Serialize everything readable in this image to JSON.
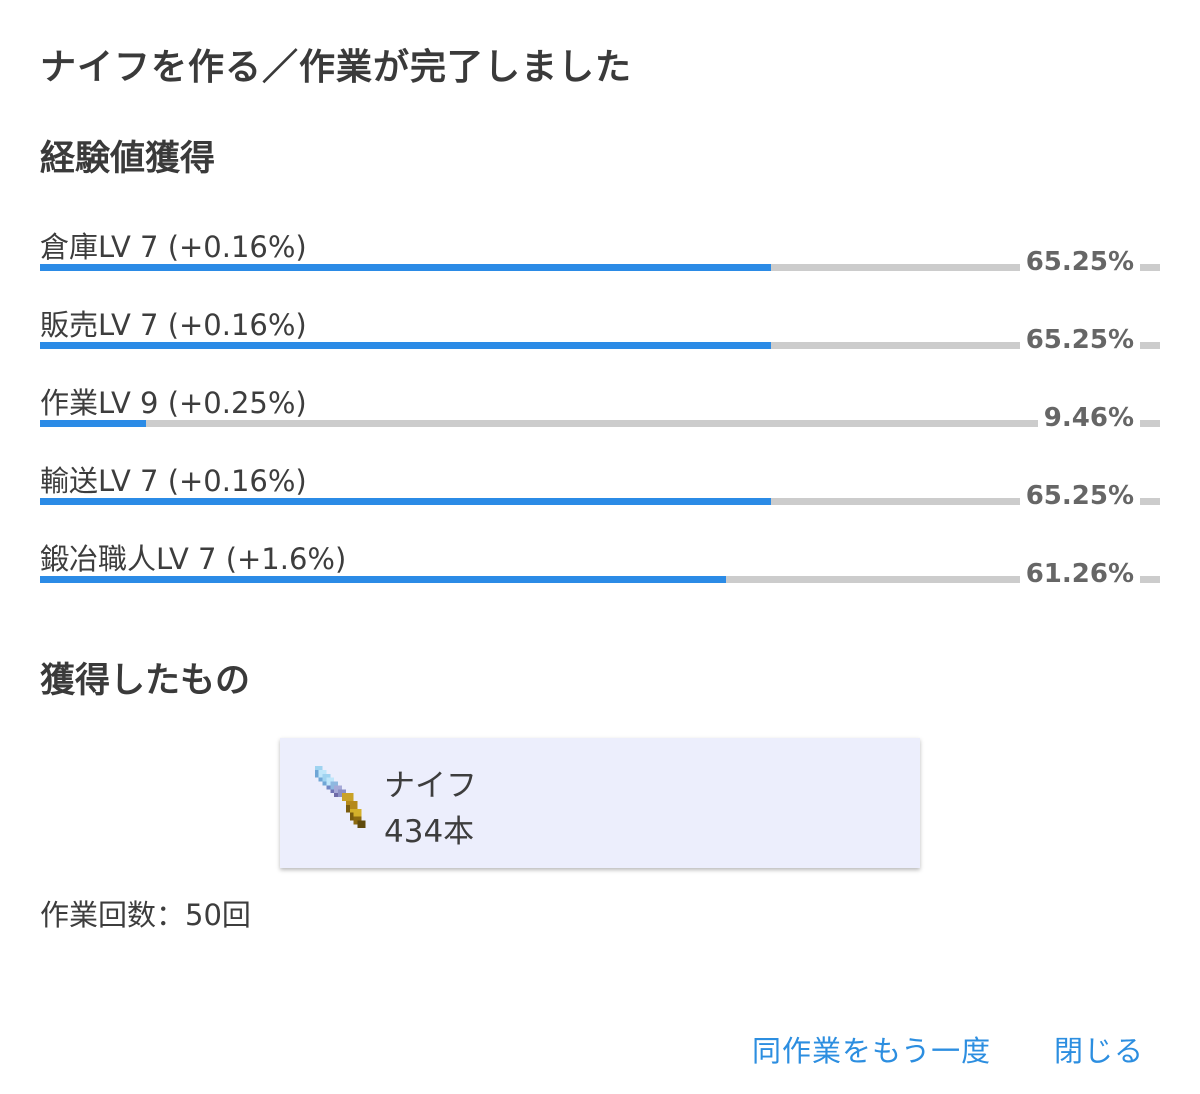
{
  "dialog": {
    "title": "ナイフを作る／作業が完了しました"
  },
  "experience": {
    "heading": "経験値獲得",
    "skills": [
      {
        "label": "倉庫LV 7 (+0.16%)",
        "percent_text": "65.25%",
        "progress": 65.25
      },
      {
        "label": "販売LV 7 (+0.16%)",
        "percent_text": "65.25%",
        "progress": 65.25
      },
      {
        "label": "作業LV 9 (+0.25%)",
        "percent_text": "9.46%",
        "progress": 9.46
      },
      {
        "label": "輸送LV 7 (+0.16%)",
        "percent_text": "65.25%",
        "progress": 65.25
      },
      {
        "label": "鍛冶職人LV 7 (+1.6%)",
        "percent_text": "61.26%",
        "progress": 61.26
      }
    ],
    "colors": {
      "fill": "#2b8be6",
      "track": "#cccccc"
    }
  },
  "items": {
    "heading": "獲得したもの",
    "list": [
      {
        "name": "ナイフ",
        "count": "434本",
        "icon": "knife-icon"
      }
    ]
  },
  "work_count": "作業回数：50回",
  "actions": {
    "repeat_label": "同作業をもう一度",
    "close_label": "閉じる",
    "accent": "#2c8ee0"
  }
}
